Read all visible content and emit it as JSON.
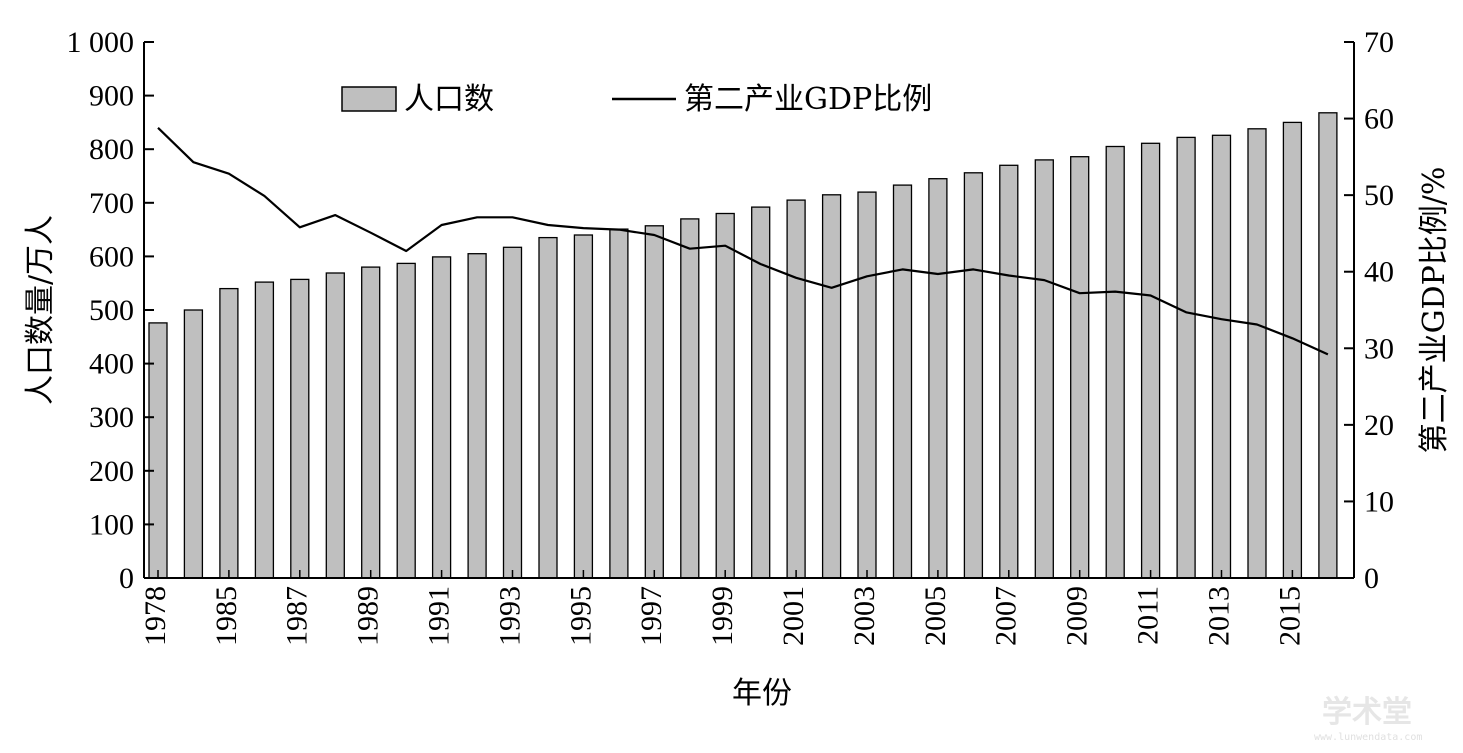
{
  "chart_data": {
    "type": "bar+line",
    "title": "",
    "xlabel": "年份",
    "ylabel_left": "人口数量/万人",
    "ylabel_right": "第二产业GDP比例/%",
    "ylim_left": [
      0,
      1000
    ],
    "ylim_right": [
      0,
      70
    ],
    "yticks_left": [
      "0",
      "100",
      "200",
      "300",
      "400",
      "500",
      "600",
      "700",
      "800",
      "900",
      "1 000"
    ],
    "yticks_right": [
      "0",
      "10",
      "20",
      "30",
      "40",
      "50",
      "60",
      "70"
    ],
    "xtick_labels": [
      "1978",
      "1985",
      "1987",
      "1989",
      "1991",
      "1993",
      "1995",
      "1997",
      "1999",
      "2001",
      "2003",
      "2005",
      "2007",
      "2009",
      "2011",
      "2013",
      "2015"
    ],
    "legend": {
      "bar": "人口数",
      "line": "第二产业GDP比例",
      "position": "top-center"
    },
    "grid": false,
    "bar_series": {
      "name": "人口数",
      "values": [
        476,
        500,
        540,
        552,
        557,
        569,
        580,
        587,
        599,
        605,
        617,
        635,
        640,
        651,
        657,
        670,
        680,
        692,
        705,
        715,
        720,
        733,
        745,
        756,
        770,
        780,
        786,
        805,
        811,
        822,
        826,
        838,
        850,
        868
      ]
    },
    "line_series": {
      "name": "第二产业GDP比例",
      "values": [
        58.8,
        54.3,
        52.8,
        49.9,
        45.8,
        47.4,
        45.1,
        42.7,
        46.1,
        47.1,
        47.1,
        46.1,
        45.7,
        45.5,
        44.8,
        43.0,
        43.4,
        41.0,
        39.2,
        37.9,
        39.4,
        40.3,
        39.7,
        40.3,
        39.5,
        38.9,
        37.2,
        37.4,
        36.9,
        34.7,
        33.8,
        33.1,
        31.3,
        29.2
      ]
    }
  },
  "watermark": {
    "text": "学术堂",
    "sub": "www.lunwendata.com"
  }
}
